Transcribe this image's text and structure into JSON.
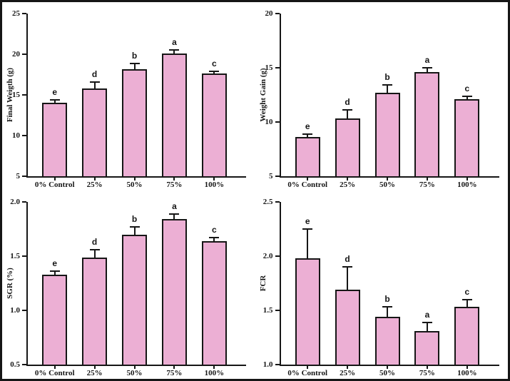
{
  "figure": {
    "background": "#ffffff",
    "frame_color": "#161616",
    "bar_fill": "#ECAFD4",
    "bar_border": "#161616"
  },
  "chart_data": [
    {
      "type": "bar",
      "position": "top-left",
      "ylabel": "Final Weigth (g)",
      "xlabel": "",
      "ylim": [
        5,
        25
      ],
      "yticks": [
        5,
        10,
        15,
        20,
        25
      ],
      "ytick_labels": [
        "5",
        "10",
        "15",
        "20",
        "25"
      ],
      "categories": [
        "0% Control",
        "25%",
        "50%",
        "75%",
        "100%"
      ],
      "values": [
        14.0,
        15.8,
        18.2,
        20.1,
        17.6
      ],
      "error_up": [
        0.4,
        0.8,
        0.7,
        0.4,
        0.3
      ],
      "sig_letters": [
        "e",
        "d",
        "b",
        "a",
        "c"
      ],
      "grid": false,
      "legend": "none"
    },
    {
      "type": "bar",
      "position": "top-right",
      "ylabel": "Weight Gain (g)",
      "xlabel": "",
      "ylim": [
        5,
        20
      ],
      "yticks": [
        5,
        10,
        15,
        20
      ],
      "ytick_labels": [
        "5",
        "10",
        "15",
        "20"
      ],
      "categories": [
        "0% Control",
        "25%",
        "50%",
        "75%",
        "100%"
      ],
      "values": [
        8.6,
        10.3,
        12.7,
        14.6,
        12.1
      ],
      "error_up": [
        0.3,
        0.8,
        0.7,
        0.4,
        0.3
      ],
      "sig_letters": [
        "e",
        "d",
        "b",
        "a",
        "c"
      ],
      "grid": false,
      "legend": "none"
    },
    {
      "type": "bar",
      "position": "bottom-left",
      "ylabel": "SGR (%)",
      "xlabel": "",
      "ylim": [
        0.5,
        2.0
      ],
      "yticks": [
        0.5,
        1.0,
        1.5,
        2.0
      ],
      "ytick_labels": [
        "0.5",
        "1.0",
        "1.5",
        "2.0"
      ],
      "categories": [
        "0% Control",
        "25%",
        "50%",
        "75%",
        "100%"
      ],
      "values": [
        1.33,
        1.49,
        1.7,
        1.84,
        1.64
      ],
      "error_up": [
        0.03,
        0.07,
        0.07,
        0.05,
        0.03
      ],
      "sig_letters": [
        "e",
        "d",
        "b",
        "a",
        "c"
      ],
      "grid": false,
      "legend": "none"
    },
    {
      "type": "bar",
      "position": "bottom-right",
      "ylabel": "FCR",
      "xlabel": "",
      "ylim": [
        1.0,
        2.5
      ],
      "yticks": [
        1.0,
        1.5,
        2.0,
        2.5
      ],
      "ytick_labels": [
        "1.0",
        "1.5",
        "2.0",
        "2.5"
      ],
      "categories": [
        "0% Control",
        "25%",
        "50%",
        "75%",
        "100%"
      ],
      "values": [
        1.98,
        1.69,
        1.44,
        1.31,
        1.53
      ],
      "error_up": [
        0.27,
        0.21,
        0.09,
        0.08,
        0.07
      ],
      "sig_letters": [
        "e",
        "d",
        "b",
        "a",
        "c"
      ],
      "grid": false,
      "legend": "none"
    }
  ]
}
